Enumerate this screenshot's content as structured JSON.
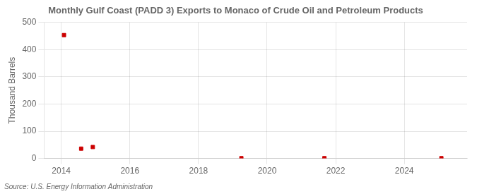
{
  "chart_data": {
    "type": "scatter",
    "title": "Monthly Gulf Coast (PADD 3) Exports to Monaco of Crude Oil and Petroleum Products",
    "ylabel": "Thousand Barrels",
    "annotations": [
      "Source: U.S. Energy Information Administration"
    ],
    "x": [
      2014.08,
      2014.58,
      2014.92,
      2019.25,
      2021.67,
      2025.08
    ],
    "values": [
      453,
      36,
      42,
      1,
      1,
      1
    ],
    "color": "#cc0000",
    "marker": "square",
    "xlim": [
      2013.5,
      2025.83
    ],
    "xticks": [
      2014,
      2016,
      2018,
      2020,
      2022,
      2024
    ],
    "ylim": [
      0,
      500
    ],
    "yticks": [
      0,
      100,
      200,
      300,
      400,
      500
    ],
    "grid": true
  }
}
